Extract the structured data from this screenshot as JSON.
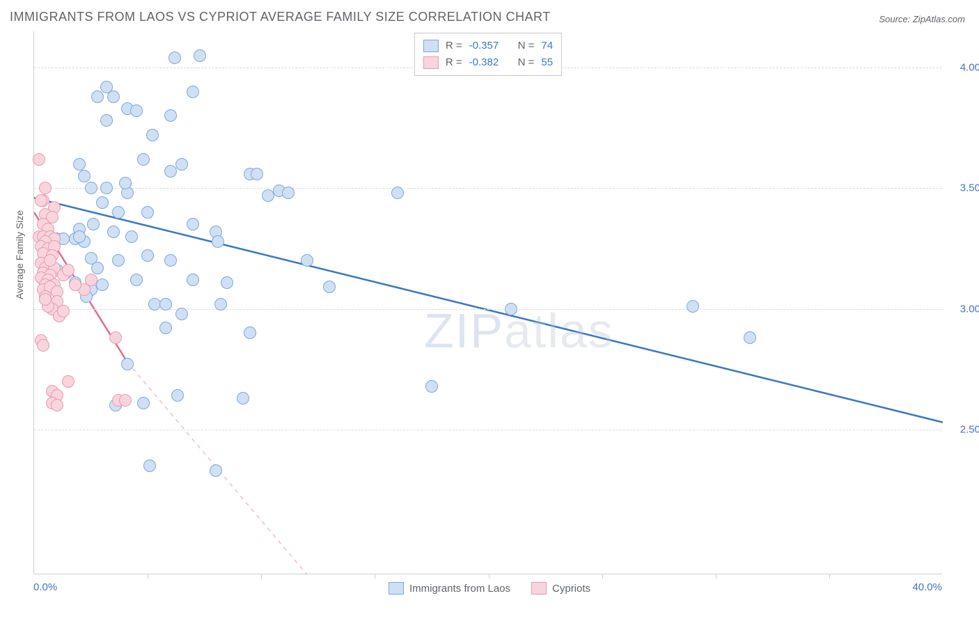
{
  "title": "IMMIGRANTS FROM LAOS VS CYPRIOT AVERAGE FAMILY SIZE CORRELATION CHART",
  "source_prefix": "Source: ",
  "source": "ZipAtlas.com",
  "watermark_a": "ZIP",
  "watermark_b": "atlas",
  "chart": {
    "type": "scatter",
    "xlim": [
      0,
      40
    ],
    "ylim": [
      1.9,
      4.15
    ],
    "xlabel_start": "0.0%",
    "xlabel_end": "40.0%",
    "ylabel": "Average Family Size",
    "yticks": [
      2.5,
      3.0,
      3.5,
      4.0
    ],
    "xtick_marks": [
      5,
      10,
      15,
      20,
      25,
      30,
      35
    ],
    "grid_color": "#dcdcdc",
    "background": "#ffffff",
    "series": [
      {
        "name": "Immigrants from Laos",
        "marker_fill": "#cfe0f5",
        "marker_stroke": "#7da7d9",
        "line_color": "#3b78c4",
        "r": -0.357,
        "n": 74,
        "trend": {
          "x1": 0,
          "y1": 3.46,
          "x2": 40,
          "y2": 2.53
        },
        "points": [
          [
            7.3,
            4.05
          ],
          [
            6.2,
            4.04
          ],
          [
            3.2,
            3.92
          ],
          [
            3.5,
            3.88
          ],
          [
            2.8,
            3.88
          ],
          [
            7.0,
            3.9
          ],
          [
            4.1,
            3.83
          ],
          [
            4.5,
            3.82
          ],
          [
            3.2,
            3.78
          ],
          [
            6.0,
            3.8
          ],
          [
            5.2,
            3.72
          ],
          [
            4.8,
            3.62
          ],
          [
            6.5,
            3.6
          ],
          [
            9.5,
            3.56
          ],
          [
            9.8,
            3.56
          ],
          [
            10.8,
            3.49
          ],
          [
            10.3,
            3.47
          ],
          [
            16.0,
            3.48
          ],
          [
            2.0,
            3.6
          ],
          [
            2.2,
            3.55
          ],
          [
            2.5,
            3.5
          ],
          [
            3.0,
            3.44
          ],
          [
            3.7,
            3.4
          ],
          [
            5.0,
            3.4
          ],
          [
            7.0,
            3.35
          ],
          [
            8.0,
            3.32
          ],
          [
            2.6,
            3.35
          ],
          [
            2.0,
            3.33
          ],
          [
            3.5,
            3.32
          ],
          [
            4.3,
            3.3
          ],
          [
            1.8,
            3.29
          ],
          [
            1.0,
            3.29
          ],
          [
            2.2,
            3.28
          ],
          [
            1.3,
            3.29
          ],
          [
            1.0,
            3.16
          ],
          [
            1.4,
            3.15
          ],
          [
            2.5,
            3.21
          ],
          [
            3.7,
            3.2
          ],
          [
            5.0,
            3.22
          ],
          [
            6.0,
            3.2
          ],
          [
            2.8,
            3.17
          ],
          [
            4.5,
            3.12
          ],
          [
            7.0,
            3.12
          ],
          [
            8.5,
            3.11
          ],
          [
            12.0,
            3.2
          ],
          [
            11.2,
            3.48
          ],
          [
            21.0,
            3.0
          ],
          [
            29.0,
            3.01
          ],
          [
            17.5,
            2.68
          ],
          [
            5.3,
            3.02
          ],
          [
            6.5,
            2.98
          ],
          [
            5.8,
            2.92
          ],
          [
            8.2,
            3.02
          ],
          [
            9.5,
            2.9
          ],
          [
            4.1,
            2.77
          ],
          [
            31.5,
            2.88
          ],
          [
            6.3,
            2.64
          ],
          [
            9.2,
            2.63
          ],
          [
            4.8,
            2.61
          ],
          [
            3.6,
            2.6
          ],
          [
            8.0,
            2.33
          ],
          [
            5.1,
            2.35
          ],
          [
            2.5,
            3.08
          ],
          [
            1.8,
            3.11
          ],
          [
            2.3,
            3.05
          ],
          [
            3.2,
            3.5
          ],
          [
            13.0,
            3.09
          ],
          [
            8.1,
            3.28
          ],
          [
            6.0,
            3.57
          ],
          [
            4.1,
            3.48
          ],
          [
            3.0,
            3.1
          ],
          [
            5.8,
            3.02
          ],
          [
            4.0,
            3.52
          ],
          [
            2.0,
            3.3
          ]
        ]
      },
      {
        "name": "Cypriots",
        "marker_fill": "#f9d4dd",
        "marker_stroke": "#e79bb0",
        "line_color": "#e46a8a",
        "r": -0.382,
        "n": 55,
        "trend": {
          "x1": 0,
          "y1": 3.4,
          "x2": 4.1,
          "y2": 2.78
        },
        "trend_dash": {
          "x1": 4.1,
          "y1": 2.78,
          "x2": 12.0,
          "y2": 1.9
        },
        "points": [
          [
            0.2,
            3.62
          ],
          [
            0.5,
            3.5
          ],
          [
            0.4,
            3.45
          ],
          [
            0.9,
            3.42
          ],
          [
            0.3,
            3.45
          ],
          [
            0.5,
            3.39
          ],
          [
            0.8,
            3.38
          ],
          [
            0.4,
            3.35
          ],
          [
            0.6,
            3.33
          ],
          [
            0.2,
            3.3
          ],
          [
            0.4,
            3.3
          ],
          [
            0.7,
            3.3
          ],
          [
            0.9,
            3.29
          ],
          [
            0.5,
            3.28
          ],
          [
            0.3,
            3.26
          ],
          [
            0.6,
            3.25
          ],
          [
            0.9,
            3.26
          ],
          [
            0.4,
            3.23
          ],
          [
            0.8,
            3.22
          ],
          [
            0.6,
            3.19
          ],
          [
            0.3,
            3.19
          ],
          [
            0.5,
            3.17
          ],
          [
            0.9,
            3.17
          ],
          [
            0.4,
            3.15
          ],
          [
            0.7,
            3.14
          ],
          [
            0.3,
            3.13
          ],
          [
            0.6,
            3.12
          ],
          [
            0.5,
            3.1
          ],
          [
            0.9,
            3.1
          ],
          [
            0.4,
            3.08
          ],
          [
            0.7,
            3.09
          ],
          [
            0.5,
            3.05
          ],
          [
            1.0,
            3.07
          ],
          [
            1.3,
            3.14
          ],
          [
            1.5,
            3.16
          ],
          [
            2.5,
            3.12
          ],
          [
            2.2,
            3.08
          ],
          [
            1.8,
            3.1
          ],
          [
            1.0,
            3.03
          ],
          [
            0.8,
            3.0
          ],
          [
            0.6,
            3.01
          ],
          [
            1.1,
            2.97
          ],
          [
            1.3,
            2.99
          ],
          [
            0.3,
            2.87
          ],
          [
            0.4,
            2.85
          ],
          [
            3.6,
            2.88
          ],
          [
            1.5,
            2.7
          ],
          [
            0.8,
            2.66
          ],
          [
            1.0,
            2.64
          ],
          [
            0.8,
            2.61
          ],
          [
            1.0,
            2.6
          ],
          [
            3.7,
            2.62
          ],
          [
            4.0,
            2.62
          ],
          [
            0.5,
            3.04
          ],
          [
            0.7,
            3.2
          ]
        ]
      }
    ]
  },
  "legend_top": {
    "r_label": "R =",
    "n_label": "N ="
  },
  "colors": {
    "text": "#5f6368",
    "axis_value": "#4472c4",
    "stat_value": "#3b78c4"
  }
}
